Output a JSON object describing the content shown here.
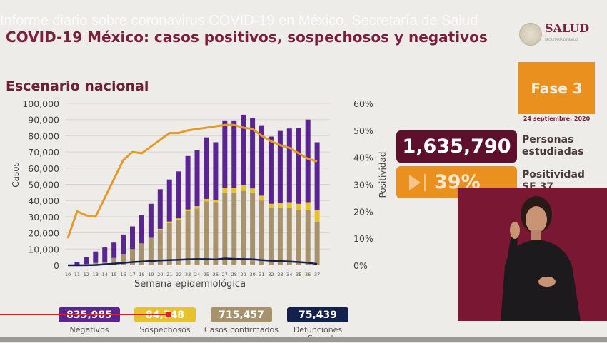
{
  "watermark": "Informe diario sobre coronavirus COVID-19 en México, Secretaría de Salud",
  "header": {
    "title": "COVID-19 México: casos positivos, sospechosos y negativos",
    "logo_text": "SALUD",
    "logo_subtext": "SECRETARÍA DE SALUD"
  },
  "subtitle": "Escenario nacional",
  "phase": {
    "label": "Fase 3",
    "date": "24 septiembre, 2020"
  },
  "kpis": {
    "studied": {
      "value": "1,635,790",
      "label_line1": "Personas",
      "label_line2": "estudiadas"
    },
    "positivity": {
      "value": "39%",
      "label_line1": "Positividad",
      "label_line2": "SE 37"
    }
  },
  "legend": [
    {
      "value": "835,985",
      "label": "Negativos",
      "color": "#5b2591"
    },
    {
      "value": "84,748",
      "label": "Sospechosos",
      "color": "#e6c22c"
    },
    {
      "value": "715,457",
      "label": "Casos confirmados",
      "color": "#a8926c"
    },
    {
      "value": "75,439",
      "label": "Defunciones confirmadas",
      "color": "#14214d"
    }
  ],
  "chart_data": {
    "type": "bar",
    "stacked": true,
    "xlabel": "Semana epidemiológica",
    "ylabel": "Casos",
    "y2label": "Positividad",
    "ylim": [
      0,
      100000
    ],
    "y2lim": [
      0,
      60
    ],
    "yticks": [
      "0",
      "10,000",
      "20,000",
      "30,000",
      "40,000",
      "50,000",
      "60,000",
      "70,000",
      "80,000",
      "90,000",
      "100,000"
    ],
    "y2ticks": [
      "0%",
      "10%",
      "20%",
      "30%",
      "40%",
      "50%",
      "60%"
    ],
    "grid": true,
    "categories": [
      "10",
      "11",
      "12",
      "13",
      "14",
      "15",
      "16",
      "17",
      "18",
      "19",
      "20",
      "21",
      "22",
      "23",
      "24",
      "25",
      "26",
      "27",
      "28",
      "29",
      "30",
      "31",
      "32",
      "33",
      "34",
      "35",
      "36",
      "37"
    ],
    "series": [
      {
        "name": "Casos confirmados",
        "kind": "bar",
        "color": "#a8926c",
        "values": [
          0,
          300,
          800,
          1500,
          2000,
          4500,
          7000,
          10000,
          13500,
          17000,
          22000,
          26000,
          28000,
          33500,
          35000,
          39500,
          39000,
          45000,
          45000,
          46000,
          45000,
          40000,
          35500,
          35500,
          35500,
          34000,
          34000,
          27000
        ]
      },
      {
        "name": "Sospechosos",
        "kind": "bar",
        "color": "#e6c22c",
        "values": [
          0,
          0,
          0,
          0,
          0,
          0,
          0,
          0,
          0,
          0,
          500,
          1000,
          1000,
          1000,
          1500,
          1500,
          1500,
          3000,
          3000,
          3500,
          2500,
          3000,
          2500,
          3000,
          3500,
          4000,
          5000,
          7000
        ]
      },
      {
        "name": "Negativos",
        "kind": "bar",
        "color": "#5b2591",
        "values": [
          0,
          1700,
          4200,
          7000,
          9000,
          9500,
          12000,
          14000,
          17500,
          21000,
          24500,
          26000,
          29000,
          33000,
          34500,
          38000,
          35500,
          41500,
          41500,
          43500,
          43500,
          43500,
          41500,
          44500,
          45500,
          47000,
          51000,
          42000
        ]
      },
      {
        "name": "Defunciones confirmadas",
        "kind": "line",
        "axis": "left",
        "color": "#14214d",
        "values": [
          0,
          0,
          50,
          150,
          600,
          1000,
          1500,
          2000,
          2300,
          2600,
          3000,
          3200,
          3400,
          3700,
          3800,
          3800,
          3600,
          4200,
          3900,
          3800,
          3700,
          3200,
          2800,
          2600,
          2300,
          2000,
          1600,
          800
        ]
      },
      {
        "name": "Positividad",
        "kind": "line",
        "axis": "right",
        "color": "#e39a2a",
        "values": [
          10,
          20,
          18.5,
          18,
          25,
          32,
          39,
          42,
          41.5,
          44,
          46.5,
          49,
          49,
          50,
          50.5,
          51,
          51.5,
          52,
          52,
          51,
          50.5,
          48,
          46,
          44.5,
          43.5,
          41.5,
          39.5,
          38.5
        ]
      }
    ]
  }
}
